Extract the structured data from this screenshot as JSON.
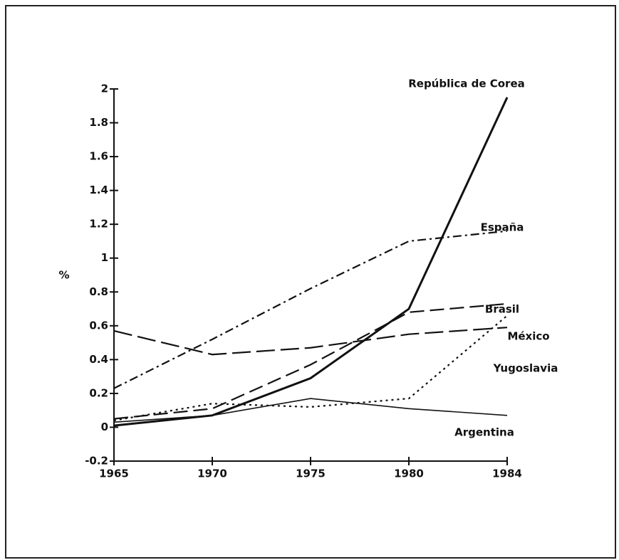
{
  "chart_data": {
    "type": "line",
    "ylabel": "%",
    "categories": [
      "1965",
      "1970",
      "1975",
      "1980",
      "1984"
    ],
    "ylim": [
      -0.2,
      2
    ],
    "yticks": [
      -0.2,
      0,
      0.2,
      0.4,
      0.6,
      0.8,
      1,
      1.2,
      1.4,
      1.6,
      1.8,
      2
    ],
    "series": [
      {
        "name": "República de Corea",
        "color": "#111111",
        "dash": "solid",
        "values": [
          0.01,
          0.07,
          0.29,
          0.7,
          1.95
        ]
      },
      {
        "name": "España",
        "color": "#111111",
        "dash": "dashdot",
        "values": [
          0.23,
          0.52,
          0.82,
          1.1,
          1.16
        ]
      },
      {
        "name": "Brasil",
        "color": "#111111",
        "dash": "dash",
        "values": [
          0.05,
          0.11,
          0.37,
          0.68,
          0.73
        ]
      },
      {
        "name": "México",
        "color": "#111111",
        "dash": "dot",
        "values": [
          0.04,
          0.14,
          0.12,
          0.17,
          0.66
        ]
      },
      {
        "name": "Yugoslavia",
        "color": "#111111",
        "dash": "longdash",
        "values": [
          0.57,
          0.43,
          0.47,
          0.55,
          0.59
        ]
      },
      {
        "name": "Argentina",
        "color": "#111111",
        "dash": "thin",
        "values": [
          0.03,
          0.07,
          0.17,
          0.11,
          0.07
        ]
      }
    ]
  }
}
